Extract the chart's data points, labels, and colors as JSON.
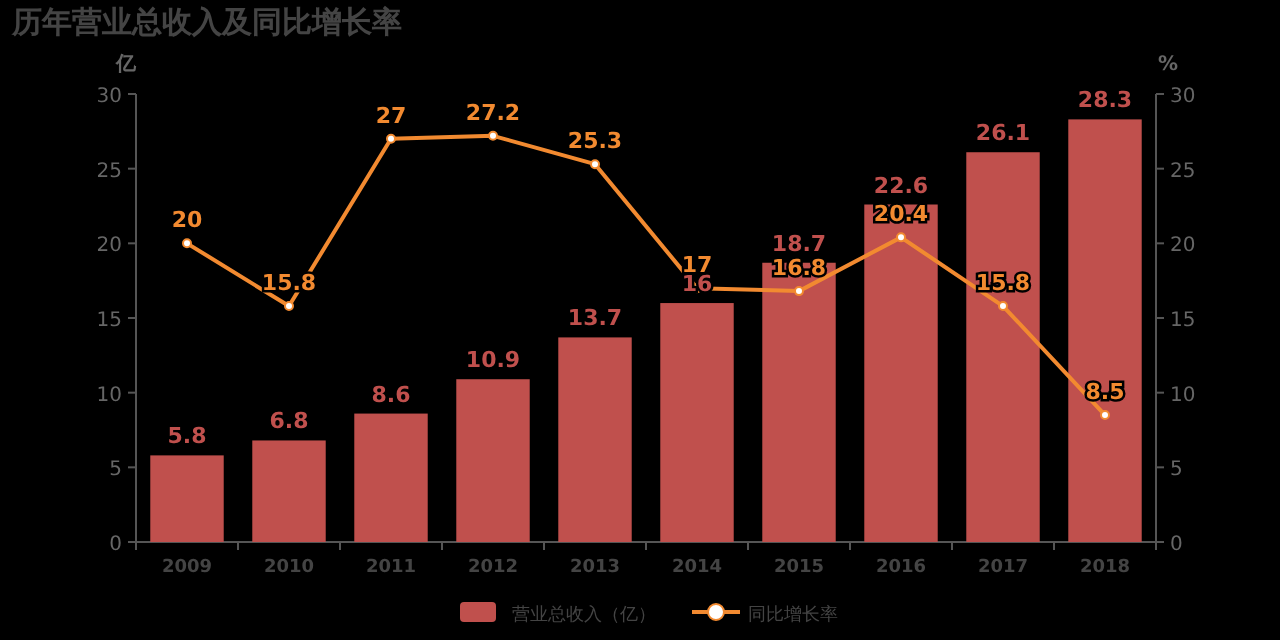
{
  "chart_data": {
    "type": "bar",
    "title": "历年营业总收入及同比增长率",
    "ylabel": "亿",
    "y2label": "%",
    "categories": [
      "2009",
      "2010",
      "2011",
      "2012",
      "2013",
      "2014",
      "2015",
      "2016",
      "2017",
      "2018"
    ],
    "series": [
      {
        "name": "营业总收入（亿）",
        "color": "#c0504d",
        "values": [
          5.8,
          6.8,
          8.6,
          10.9,
          13.7,
          16,
          18.7,
          22.6,
          26.1,
          28.3
        ]
      },
      {
        "name": "同比增长率",
        "type": "line",
        "axis": "y2",
        "color": "#f28a30",
        "marker": "circle",
        "values": [
          20,
          15.8,
          27,
          27.2,
          25.3,
          17,
          16.8,
          20.4,
          15.8,
          8.5
        ]
      }
    ],
    "ylim": [
      0,
      30
    ],
    "yticks": [
      0,
      5,
      10,
      15,
      20,
      25,
      30
    ],
    "y2lim": [
      0,
      30
    ],
    "y2ticks": [
      0,
      5,
      10,
      15,
      20,
      25,
      30
    ],
    "data_labels": true,
    "legend": "bottom",
    "grid": false
  }
}
